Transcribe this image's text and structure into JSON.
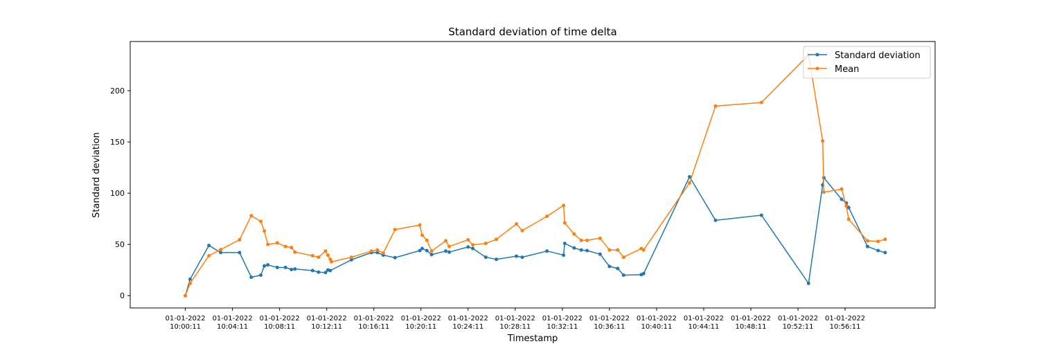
{
  "chart_data": {
    "type": "line",
    "title": "Standard deviation of time delta",
    "xlabel": "Timestamp",
    "ylabel": "Standard deviation",
    "xlim": [
      -4.68,
      63.64
    ],
    "ylim": [
      -12,
      248
    ],
    "yticks": [
      0,
      50,
      100,
      150,
      200
    ],
    "xticks": [
      {
        "value": 0,
        "lines": [
          "01-01-2022",
          "10:00:11"
        ]
      },
      {
        "value": 4,
        "lines": [
          "01-01-2022",
          "10:04:11"
        ]
      },
      {
        "value": 8,
        "lines": [
          "01-01-2022",
          "10:08:11"
        ]
      },
      {
        "value": 12,
        "lines": [
          "01-01-2022",
          "10:12:11"
        ]
      },
      {
        "value": 16,
        "lines": [
          "01-01-2022",
          "10:16:11"
        ]
      },
      {
        "value": 20,
        "lines": [
          "01-01-2022",
          "10:20:11"
        ]
      },
      {
        "value": 24,
        "lines": [
          "01-01-2022",
          "10:24:11"
        ]
      },
      {
        "value": 28,
        "lines": [
          "01-01-2022",
          "10:28:11"
        ]
      },
      {
        "value": 32,
        "lines": [
          "01-01-2022",
          "10:32:11"
        ]
      },
      {
        "value": 36,
        "lines": [
          "01-01-2022",
          "10:36:11"
        ]
      },
      {
        "value": 40,
        "lines": [
          "01-01-2022",
          "10:40:11"
        ]
      },
      {
        "value": 44,
        "lines": [
          "01-01-2022",
          "10:44:11"
        ]
      },
      {
        "value": 48,
        "lines": [
          "01-01-2022",
          "10:48:11"
        ]
      },
      {
        "value": 52,
        "lines": [
          "01-01-2022",
          "10:52:11"
        ]
      },
      {
        "value": 56,
        "lines": [
          "01-01-2022",
          "10:56:11"
        ]
      }
    ],
    "legend_position": "top-right",
    "series": [
      {
        "name": "Standard deviation",
        "color": "#1f77b4",
        "points": [
          [
            0,
            0
          ],
          [
            0.4,
            16
          ],
          [
            2,
            49
          ],
          [
            3,
            42
          ],
          [
            4.6,
            42
          ],
          [
            5.6,
            18
          ],
          [
            6.4,
            20
          ],
          [
            6.7,
            29
          ],
          [
            7,
            30
          ],
          [
            7.8,
            27.5
          ],
          [
            8.5,
            27.5
          ],
          [
            9,
            25.5
          ],
          [
            9.3,
            26
          ],
          [
            10.8,
            24.5
          ],
          [
            11.3,
            23
          ],
          [
            11.9,
            22.5
          ],
          [
            12.1,
            25
          ],
          [
            12.3,
            24.5
          ],
          [
            14.1,
            35
          ],
          [
            15.8,
            42
          ],
          [
            16.3,
            42
          ],
          [
            16.8,
            39.5
          ],
          [
            17.8,
            37
          ],
          [
            19.9,
            44
          ],
          [
            20.1,
            46
          ],
          [
            20.5,
            44
          ],
          [
            20.9,
            40
          ],
          [
            22.1,
            43.5
          ],
          [
            22.4,
            42.5
          ],
          [
            24,
            47.5
          ],
          [
            24.4,
            46
          ],
          [
            25.5,
            37.5
          ],
          [
            26.4,
            35.5
          ],
          [
            28.1,
            38.5
          ],
          [
            28.6,
            37.5
          ],
          [
            30.7,
            43.5
          ],
          [
            32.1,
            39.5
          ],
          [
            32.2,
            51
          ],
          [
            33,
            46.5
          ],
          [
            33.6,
            44.5
          ],
          [
            34.1,
            44
          ],
          [
            35.2,
            40.5
          ],
          [
            36,
            28.5
          ],
          [
            36.7,
            26.5
          ],
          [
            37.2,
            20
          ],
          [
            38.7,
            20.5
          ],
          [
            38.9,
            21.5
          ],
          [
            42.8,
            116
          ],
          [
            45,
            73.5
          ],
          [
            48.9,
            78.5
          ],
          [
            52.9,
            12
          ],
          [
            54.1,
            108
          ],
          [
            54.2,
            115
          ],
          [
            55.7,
            94
          ],
          [
            56.1,
            90.5
          ],
          [
            56.3,
            86
          ],
          [
            57.9,
            48
          ],
          [
            58.8,
            44
          ],
          [
            59.4,
            42
          ]
        ]
      },
      {
        "name": "Mean",
        "color": "#ff7f0e",
        "points": [
          [
            0,
            0
          ],
          [
            0.4,
            12
          ],
          [
            2,
            39
          ],
          [
            3,
            45
          ],
          [
            4.6,
            54.5
          ],
          [
            5.6,
            78
          ],
          [
            6.4,
            72.5
          ],
          [
            6.7,
            63
          ],
          [
            7,
            50
          ],
          [
            7.8,
            51.5
          ],
          [
            8.5,
            48
          ],
          [
            9,
            47
          ],
          [
            9.3,
            42.5
          ],
          [
            10.8,
            39
          ],
          [
            11.3,
            37.5
          ],
          [
            11.9,
            43.5
          ],
          [
            12.1,
            39.5
          ],
          [
            12.3,
            35.5
          ],
          [
            12.4,
            33
          ],
          [
            14.1,
            37.5
          ],
          [
            15.8,
            43.5
          ],
          [
            16.3,
            44.5
          ],
          [
            16.8,
            41.5
          ],
          [
            17.8,
            64.5
          ],
          [
            19.9,
            69
          ],
          [
            20.1,
            59
          ],
          [
            20.5,
            54
          ],
          [
            20.9,
            43.5
          ],
          [
            22.1,
            53.5
          ],
          [
            22.4,
            48
          ],
          [
            24,
            54.5
          ],
          [
            24.4,
            49.5
          ],
          [
            25.5,
            51
          ],
          [
            26.4,
            55
          ],
          [
            28.1,
            70
          ],
          [
            28.6,
            63.5
          ],
          [
            30.7,
            77.5
          ],
          [
            32.1,
            88
          ],
          [
            32.2,
            71
          ],
          [
            33,
            60
          ],
          [
            33.6,
            54
          ],
          [
            34.1,
            54
          ],
          [
            35.2,
            56
          ],
          [
            36,
            44.5
          ],
          [
            36.7,
            44.5
          ],
          [
            37.2,
            37.5
          ],
          [
            38.7,
            46
          ],
          [
            38.9,
            44.5
          ],
          [
            42.8,
            110
          ],
          [
            45,
            185
          ],
          [
            48.9,
            188.5
          ],
          [
            52.9,
            235
          ],
          [
            54.1,
            151
          ],
          [
            54.2,
            101
          ],
          [
            55.7,
            104
          ],
          [
            56.1,
            87.5
          ],
          [
            56.3,
            74.5
          ],
          [
            57.9,
            53.5
          ],
          [
            58.8,
            53
          ],
          [
            59.4,
            55
          ]
        ]
      }
    ]
  }
}
